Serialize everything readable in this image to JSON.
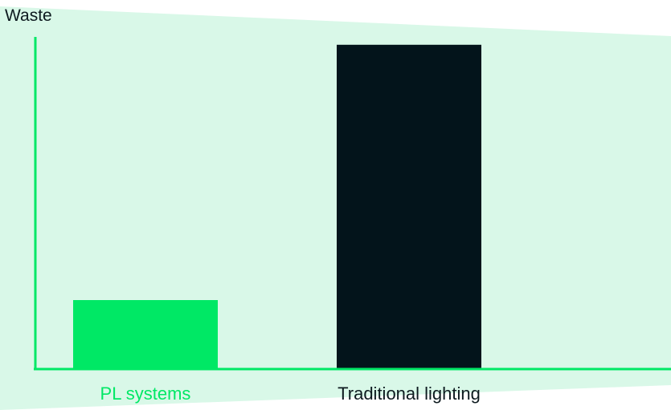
{
  "chart_data": {
    "type": "bar",
    "ylabel": "Waste",
    "xlabel": "",
    "categories": [
      "PL systems",
      "Traditional lighting"
    ],
    "values": [
      20,
      94
    ],
    "ylim": [
      0,
      100
    ],
    "grid": false,
    "colors": {
      "bars": [
        "#00e865",
        "#03141b"
      ],
      "category_labels": [
        "#00e865",
        "#0d1a1f"
      ],
      "axis": "#00e865",
      "background_shape": "#d9f8e8"
    }
  }
}
